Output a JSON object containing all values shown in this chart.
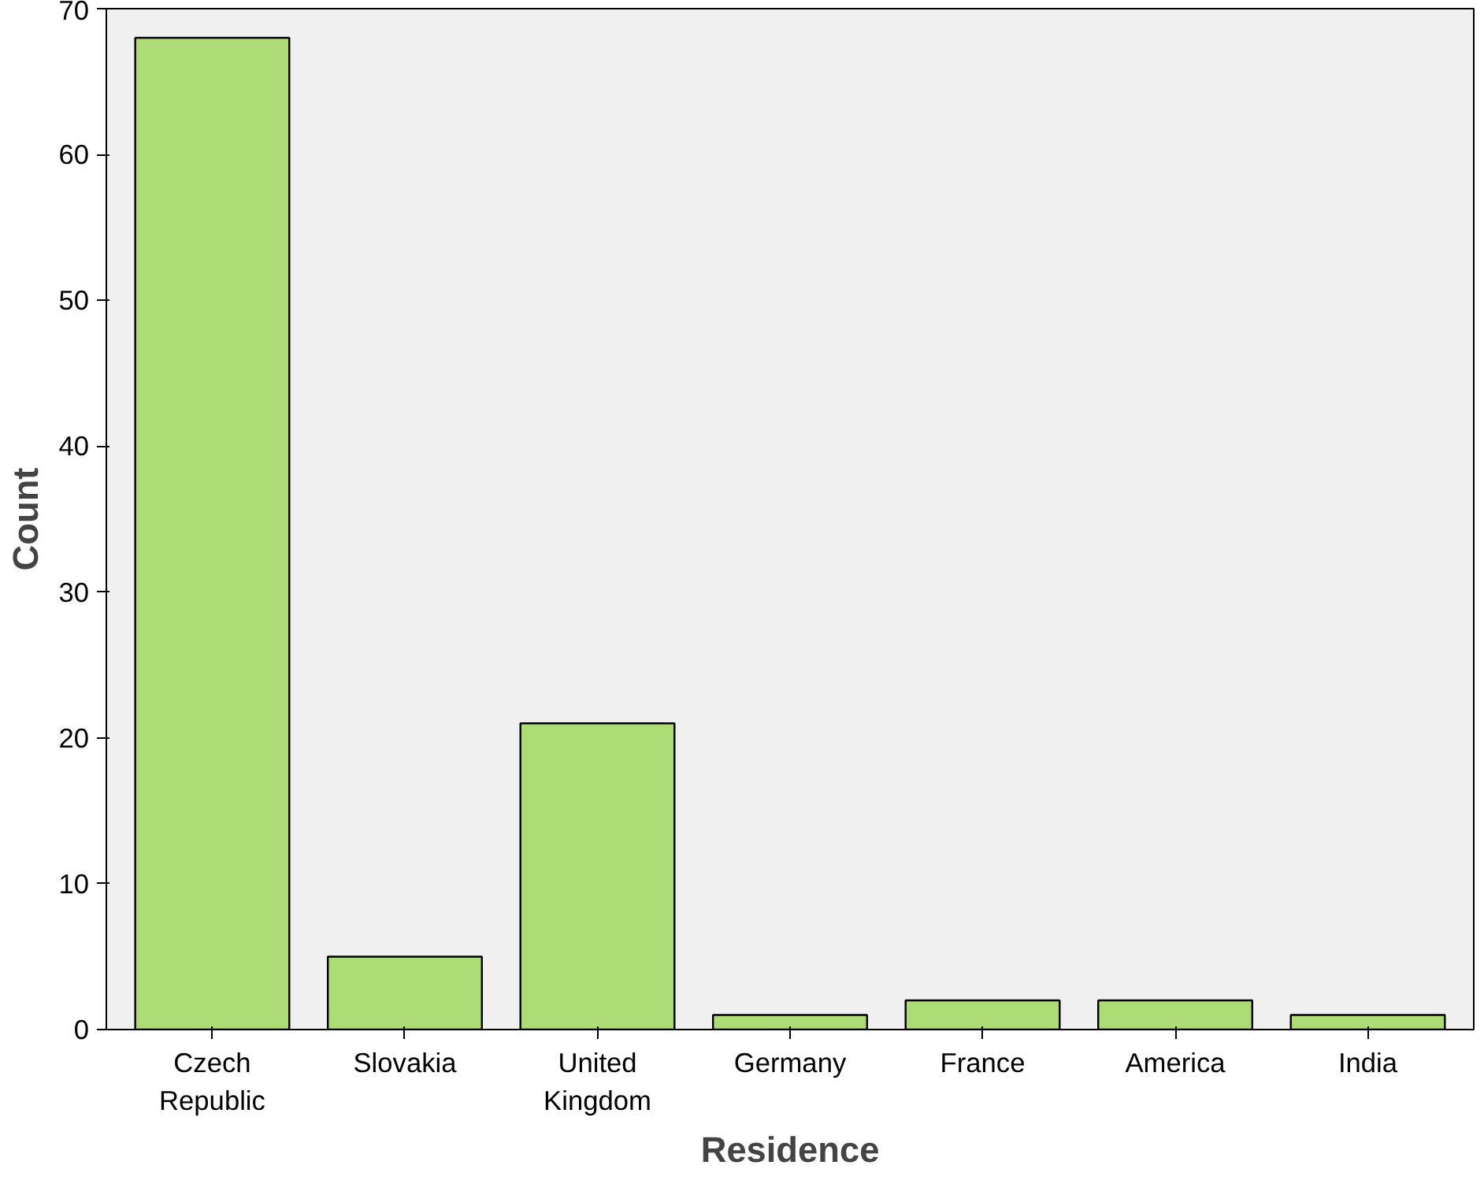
{
  "chart_data": {
    "type": "bar",
    "xlabel": "Residence",
    "ylabel": "Count",
    "categories": [
      "Czech Republic",
      "Slovakia",
      "United Kingdom",
      "Germany",
      "France",
      "America",
      "India"
    ],
    "values": [
      68,
      5,
      21,
      1,
      2,
      2,
      1
    ],
    "color": "#addc76",
    "ylim": [
      0,
      70
    ],
    "yticks": [
      0,
      10,
      20,
      30,
      40,
      50,
      60,
      70
    ],
    "grid": false
  }
}
